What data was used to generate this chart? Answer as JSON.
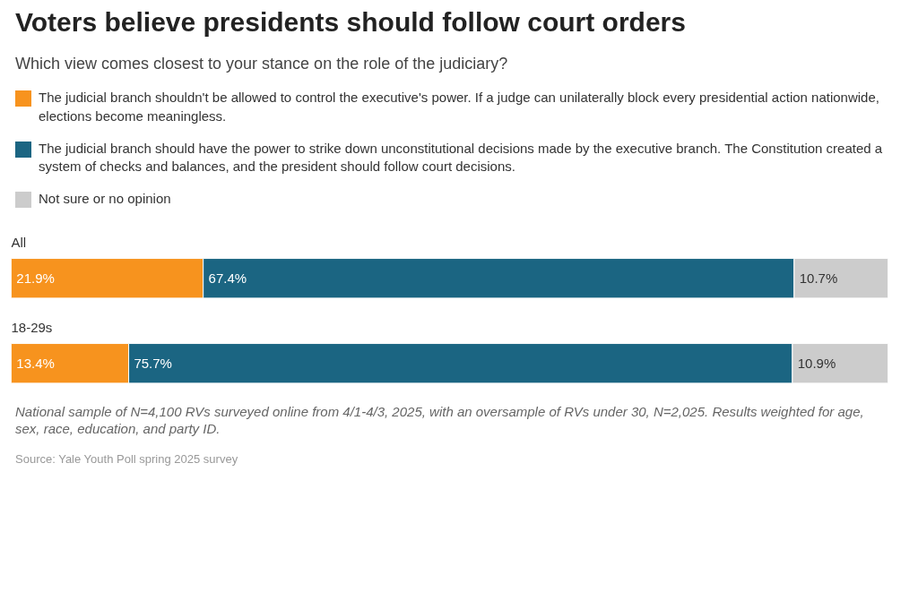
{
  "chart_data": {
    "type": "bar",
    "orientation": "horizontal",
    "stacked": true,
    "title": "Voters believe presidents should follow court orders",
    "subtitle": "Which view comes closest to your stance on the role of the judiciary?",
    "categories": [
      "All",
      "18-29s"
    ],
    "series": [
      {
        "name": "The judicial branch shouldn't be allowed to control the executive's power. If a judge can unilaterally block every presidential action nationwide, elections become meaningless.",
        "color": "#f7931e",
        "values": [
          21.9,
          13.4
        ],
        "value_labels": [
          "21.9%",
          "13.4%"
        ]
      },
      {
        "name": "The judicial branch should have the power to strike down unconstitutional decisions made by the executive branch. The Constitution created a system of checks and balances, and the president should follow court decisions.",
        "color": "#1b6582",
        "values": [
          67.4,
          75.7
        ],
        "value_labels": [
          "67.4%",
          "75.7%"
        ]
      },
      {
        "name": "Not sure or no opinion",
        "color": "#cccccc",
        "values": [
          10.7,
          10.9
        ],
        "value_labels": [
          "10.7%",
          "10.9%"
        ]
      }
    ],
    "legend": "top",
    "annotations": [
      "National sample of N=4,100 RVs surveyed online from 4/1-4/3, 2025, with an oversample of RVs under 30, N=2,025. Results weighted for age, sex, race, education, and party ID.",
      "Source: Yale Youth Poll spring 2025 survey"
    ]
  }
}
